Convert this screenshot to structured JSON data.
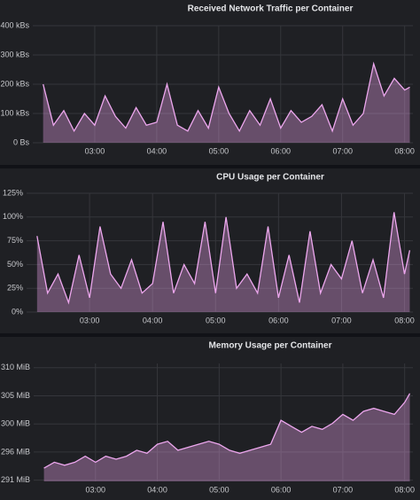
{
  "chart_data": [
    {
      "type": "line",
      "title": "Received Network Traffic per Container",
      "color": "#eda7ee",
      "x": [
        "02:10",
        "02:20",
        "02:30",
        "02:40",
        "02:50",
        "03:00",
        "03:10",
        "03:20",
        "03:30",
        "03:40",
        "03:50",
        "04:00",
        "04:10",
        "04:20",
        "04:30",
        "04:40",
        "04:50",
        "05:00",
        "05:10",
        "05:20",
        "05:30",
        "05:40",
        "05:50",
        "06:00",
        "06:10",
        "06:20",
        "06:30",
        "06:40",
        "06:50",
        "07:00",
        "07:10",
        "07:20",
        "07:30",
        "07:40",
        "07:50",
        "08:00",
        "08:05"
      ],
      "values": [
        200,
        60,
        110,
        40,
        100,
        60,
        160,
        90,
        50,
        120,
        60,
        70,
        200,
        60,
        40,
        110,
        50,
        190,
        100,
        40,
        110,
        60,
        150,
        50,
        110,
        70,
        90,
        130,
        40,
        150,
        60,
        100,
        270,
        160,
        220,
        180,
        190
      ],
      "xlim": [
        "02:00",
        "08:08"
      ],
      "xticks": [
        "03:00",
        "04:00",
        "05:00",
        "06:00",
        "07:00",
        "08:00"
      ],
      "ylim": [
        0,
        400
      ],
      "yticks": [
        {
          "value": 0,
          "label": "0 Bs"
        },
        {
          "value": 100,
          "label": "100 kBs"
        },
        {
          "value": 200,
          "label": "200 kBs"
        },
        {
          "value": 300,
          "label": "300 kBs"
        },
        {
          "value": 400,
          "label": "400 kBs"
        }
      ],
      "grid": true
    },
    {
      "type": "line",
      "title": "CPU Usage per Container",
      "color": "#eda7ee",
      "x": [
        "02:10",
        "02:20",
        "02:30",
        "02:40",
        "02:50",
        "03:00",
        "03:10",
        "03:20",
        "03:30",
        "03:40",
        "03:50",
        "04:00",
        "04:10",
        "04:20",
        "04:30",
        "04:40",
        "04:50",
        "05:00",
        "05:10",
        "05:20",
        "05:30",
        "05:40",
        "05:50",
        "06:00",
        "06:10",
        "06:20",
        "06:30",
        "06:40",
        "06:50",
        "07:00",
        "07:10",
        "07:20",
        "07:30",
        "07:40",
        "07:50",
        "08:00",
        "08:05"
      ],
      "values": [
        80,
        20,
        40,
        10,
        60,
        15,
        90,
        40,
        25,
        55,
        20,
        30,
        95,
        20,
        50,
        30,
        95,
        20,
        100,
        25,
        40,
        20,
        90,
        15,
        60,
        10,
        85,
        20,
        50,
        35,
        75,
        20,
        55,
        15,
        105,
        40,
        65
      ],
      "xlim": [
        "02:00",
        "08:08"
      ],
      "xticks": [
        "03:00",
        "04:00",
        "05:00",
        "06:00",
        "07:00",
        "08:00"
      ],
      "ylim": [
        0,
        125
      ],
      "yticks": [
        {
          "value": 0,
          "label": "0%"
        },
        {
          "value": 25,
          "label": "25%"
        },
        {
          "value": 50,
          "label": "50%"
        },
        {
          "value": 75,
          "label": "75%"
        },
        {
          "value": 100,
          "label": "100%"
        },
        {
          "value": 125,
          "label": "125%"
        }
      ],
      "grid": true
    },
    {
      "type": "line",
      "title": "Memory Usage per Container",
      "color": "#eda7ee",
      "x": [
        "02:10",
        "02:20",
        "02:30",
        "02:40",
        "02:50",
        "03:00",
        "03:10",
        "03:20",
        "03:30",
        "03:40",
        "03:50",
        "04:00",
        "04:10",
        "04:20",
        "04:30",
        "04:40",
        "04:50",
        "05:00",
        "05:10",
        "05:20",
        "05:30",
        "05:40",
        "05:50",
        "06:00",
        "06:10",
        "06:20",
        "06:30",
        "06:40",
        "06:50",
        "07:00",
        "07:10",
        "07:20",
        "07:30",
        "07:40",
        "07:50",
        "08:00",
        "08:05"
      ],
      "values": [
        293,
        294,
        293.5,
        294,
        295,
        294,
        295,
        294.5,
        295,
        296,
        295.5,
        297,
        297.5,
        296,
        296.5,
        297,
        297.5,
        297,
        296,
        295.5,
        296,
        296.5,
        297,
        301,
        300,
        299,
        300,
        299.5,
        300.5,
        302,
        301,
        302.5,
        303,
        302.5,
        302,
        304,
        305.5
      ],
      "xlim": [
        "02:00",
        "08:08"
      ],
      "xticks": [
        "03:00",
        "04:00",
        "05:00",
        "06:00",
        "07:00",
        "08:00"
      ],
      "ylim": [
        290.8,
        310.5
      ],
      "yticks": [
        {
          "value": 291,
          "label": "291 MiB"
        },
        {
          "value": 295.7,
          "label": "296 MiB"
        },
        {
          "value": 300.4,
          "label": "300 MiB"
        },
        {
          "value": 305.1,
          "label": "305 MiB"
        },
        {
          "value": 309.8,
          "label": "310 MiB"
        }
      ],
      "grid": true
    }
  ]
}
